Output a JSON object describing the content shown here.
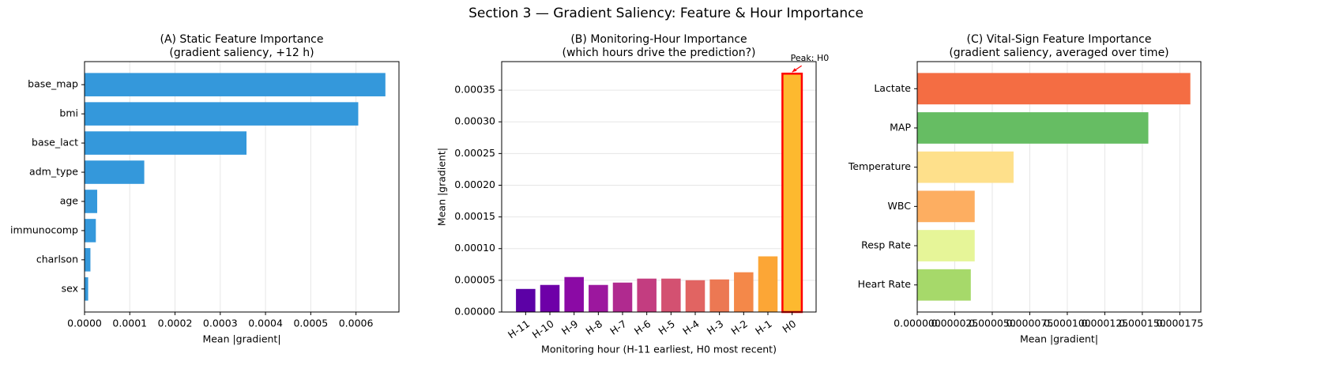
{
  "title": "Section 3 — Gradient Saliency: Feature & Hour Importance",
  "chart_data": [
    {
      "type": "barh",
      "title": [
        "(A) Static Feature Importance",
        "(gradient saliency, +12 h)"
      ],
      "categories": [
        "base_map",
        "bmi",
        "base_lact",
        "adm_type",
        "age",
        "immunocomp",
        "charlson",
        "sex"
      ],
      "values": [
        0.000665,
        0.000605,
        0.000358,
        0.000132,
        2.8e-05,
        2.5e-05,
        1.3e-05,
        8e-06
      ],
      "color": "#3498db",
      "xlabel": "Mean |gradient|",
      "xlim": [
        0,
        0.000695
      ],
      "xticks": [
        {
          "value": 0,
          "label": "0.0000"
        },
        {
          "value": 0.0001,
          "label": "0.0001"
        },
        {
          "value": 0.0002,
          "label": "0.0002"
        },
        {
          "value": 0.0003,
          "label": "0.0003"
        },
        {
          "value": 0.0004,
          "label": "0.0004"
        },
        {
          "value": 0.0005,
          "label": "0.0005"
        },
        {
          "value": 0.0006,
          "label": "0.0006"
        }
      ],
      "grid": "x"
    },
    {
      "type": "bar",
      "title": [
        "(B) Monitoring-Hour Importance",
        "(which hours drive the prediction?)"
      ],
      "categories": [
        "H-11",
        "H-10",
        "H-9",
        "H-8",
        "H-7",
        "H-6",
        "H-5",
        "H-4",
        "H-3",
        "H-2",
        "H-1",
        "H0"
      ],
      "values": [
        3.64e-05,
        4.27e-05,
        5.52e-05,
        4.27e-05,
        4.64e-05,
        5.27e-05,
        5.27e-05,
        5.02e-05,
        5.14e-05,
        6.27e-05,
        8.78e-05,
        0.000376
      ],
      "colors": [
        "#5c01a6",
        "#6e00a8",
        "#8b0aa5",
        "#9c179e",
        "#b02a8f",
        "#c33d80",
        "#d35171",
        "#e16462",
        "#ec7853",
        "#f48849",
        "#fca636",
        "#fdb92f"
      ],
      "edgecolors": [
        null,
        null,
        null,
        null,
        null,
        null,
        null,
        null,
        null,
        null,
        null,
        "#ff0000"
      ],
      "annotation": {
        "text": "Peak: H0",
        "color": "#ff0000"
      },
      "xlabel": "Monitoring hour (H-11 earliest, H0 most recent)",
      "ylabel": "Mean |gradient|",
      "ylim": [
        0,
        0.000395
      ],
      "yticks": [
        {
          "value": 0,
          "label": "0.00000"
        },
        {
          "value": 5e-05,
          "label": "0.00005"
        },
        {
          "value": 0.0001,
          "label": "0.00010"
        },
        {
          "value": 0.00015,
          "label": "0.00015"
        },
        {
          "value": 0.0002,
          "label": "0.00020"
        },
        {
          "value": 0.00025,
          "label": "0.00025"
        },
        {
          "value": 0.0003,
          "label": "0.00030"
        },
        {
          "value": 0.00035,
          "label": "0.00035"
        }
      ],
      "grid": "y"
    },
    {
      "type": "barh",
      "title": [
        "(C) Vital-Sign Feature Importance",
        "(gradient saliency, averaged over time)"
      ],
      "categories": [
        "Lactate",
        "MAP",
        "Temperature",
        "WBC",
        "Resp Rate",
        "Heart Rate"
      ],
      "values": [
        0.000182,
        0.000154,
        6.42e-05,
        3.83e-05,
        3.83e-05,
        3.57e-05
      ],
      "colors": [
        "#f46d43",
        "#66bd63",
        "#fee08b",
        "#fdae61",
        "#e6f598",
        "#a6d96a"
      ],
      "xlabel": "Mean |gradient|",
      "xlim": [
        0,
        0.000189
      ],
      "xticks": [
        {
          "value": 0,
          "label": "0.000000"
        },
        {
          "value": 2.5e-05,
          "label": "0.000025"
        },
        {
          "value": 5e-05,
          "label": "0.000050"
        },
        {
          "value": 7.5e-05,
          "label": "0.000075"
        },
        {
          "value": 0.0001,
          "label": "0.000100"
        },
        {
          "value": 0.000125,
          "label": "0.000125"
        },
        {
          "value": 0.00015,
          "label": "0.000150"
        },
        {
          "value": 0.000175,
          "label": "0.000175"
        }
      ],
      "grid": "x"
    }
  ]
}
